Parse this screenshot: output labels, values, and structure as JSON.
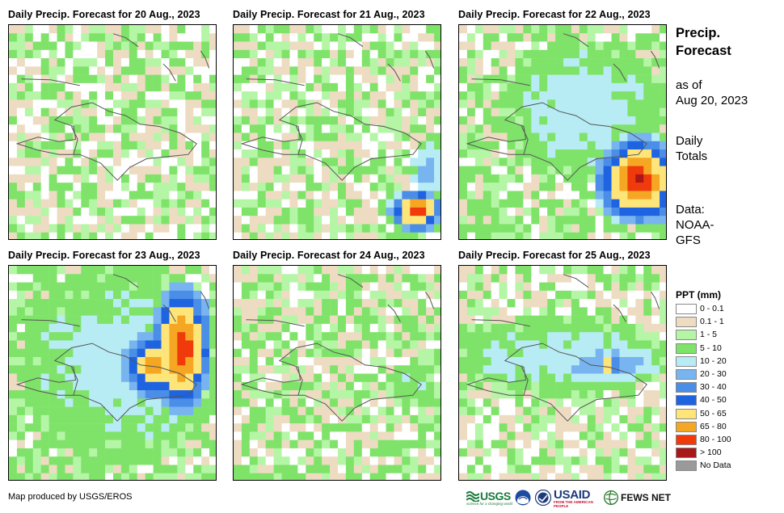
{
  "panels": [
    {
      "title": "Daily Precip. Forecast for 20 Aug., 2023"
    },
    {
      "title": "Daily Precip. Forecast for 21 Aug., 2023"
    },
    {
      "title": "Daily Precip. Forecast for 22 Aug., 2023"
    },
    {
      "title": "Daily Precip. Forecast for 23 Aug., 2023"
    },
    {
      "title": "Daily Precip. Forecast for 24 Aug., 2023"
    },
    {
      "title": "Daily Precip. Forecast for 25 Aug., 2023"
    }
  ],
  "side_info": {
    "heading": [
      "Precip.",
      "Forecast"
    ],
    "as_of": [
      "as of",
      "Aug 20, 2023"
    ],
    "totals": [
      "Daily",
      "Totals"
    ],
    "source": [
      "Data:",
      "NOAA-",
      "GFS"
    ]
  },
  "legend": {
    "title": "PPT (mm)",
    "items": [
      {
        "label": "0 - 0.1",
        "color": "#ffffff"
      },
      {
        "label": "0.1 - 1",
        "color": "#eddcc2"
      },
      {
        "label": "1 - 5",
        "color": "#b5f5a6"
      },
      {
        "label": "5 - 10",
        "color": "#7fe36a"
      },
      {
        "label": "10 - 20",
        "color": "#b7ecf5"
      },
      {
        "label": "20 - 30",
        "color": "#78b4ef"
      },
      {
        "label": "30 - 40",
        "color": "#4a8ee8"
      },
      {
        "label": "40 - 50",
        "color": "#1e63e0"
      },
      {
        "label": "50 - 65",
        "color": "#fde57a"
      },
      {
        "label": "65 - 80",
        "color": "#f5a623"
      },
      {
        "label": "80 - 100",
        "color": "#f03a0c"
      },
      {
        "label": "> 100",
        "color": "#a81818"
      },
      {
        "label": "No Data",
        "color": "#9a9a9a"
      }
    ]
  },
  "footer": {
    "credit": "Map produced by USGS/EROS",
    "logos": {
      "usgs": "USGS",
      "usgs_tagline": "science for a changing world",
      "usaid": "USAID",
      "usaid_tagline": "FROM THE AMERICAN PEOPLE",
      "fewsnet": "FEWS NET"
    }
  }
}
